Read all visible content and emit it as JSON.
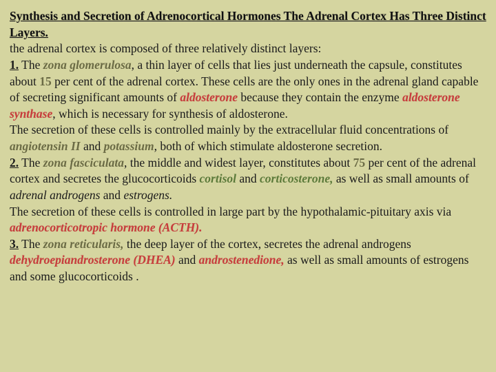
{
  "title": "Synthesis and Secretion of Adrenocortical Hormones The Adrenal Cortex Has Three Distinct Layers.",
  "intro": "the adrenal cortex is composed of three relatively distinct layers:",
  "n1": "1.",
  "the1": " The ",
  "zona1": "zona glomerulosa",
  "layer1a": ", a thin layer of cells that lies just underneath the capsule, constitutes about ",
  "fifteen": "15",
  "layer1b": " per cent of the adrenal cortex. These cells are the only ones in the adrenal gland capable of secreting significant amounts of ",
  "aldo": "aldosterone",
  "layer1c": " because they contain the enzyme ",
  "aldosyn": "aldosterone synthase",
  "layer1d": ", which is necessary for synthesis of aldosterone.",
  "sec1a": "The secretion of these cells is controlled mainly by the extracellular fluid concentrations of ",
  "ang": "angiotensin II",
  "and1": " and ",
  "pot": "potassium",
  "sec1b": ", both of which stimulate aldosterone secretion.",
  "n2": "2.",
  "the2": " The ",
  "zona2": "zona fasciculata",
  "layer2a": ", the middle and widest layer, constitutes about ",
  "seventyfive": "75",
  "layer2b": " per cent of the adrenal cortex and secretes the glucocorticoids ",
  "cortisol": "cortisol",
  "and2": " and ",
  "corticosterone": "corticosterone,",
  "layer2c": " as well as small amounts of ",
  "adrogens": "adrenal androgens",
  "and3": " and ",
  "estrogens": "estrogens.",
  "sec2a": "The secretion of these cells is controlled in large part by the hypothalamic-pituitary axis via ",
  "acth": "adrenocorticotropic hormone (ACTH).",
  "n3": "3.",
  "the3": " The ",
  "zona3": "zona reticularis,",
  "layer3a": " the deep layer of the cortex, secretes the adrenal androgens ",
  "dhea": "dehydroepiandrosterone (DHEA)",
  "and4": " and ",
  "andro": "androstenedione,",
  "layer3b": " as well as small amounts of estrogens and some glucocorticoids ."
}
